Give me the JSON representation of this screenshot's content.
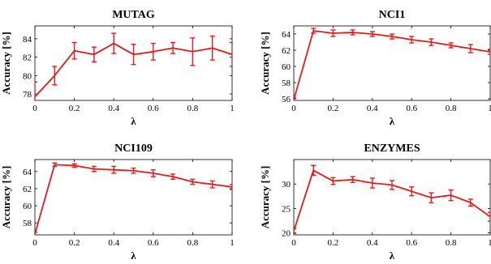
{
  "figure": {
    "accent": "#e41a1c",
    "axis_color": "#000000"
  },
  "chart_data": [
    {
      "type": "line",
      "title": "MUTAG",
      "xlabel": "λ",
      "ylabel": "Accuracy [%]",
      "xlim": [
        0,
        1
      ],
      "ylim": [
        77.3,
        85.4
      ],
      "xticks": [
        "0",
        "0.2",
        "0.4",
        "0.6",
        "0.8",
        "1"
      ],
      "yticks": [
        "78",
        "80",
        "82",
        "84"
      ],
      "grid": false,
      "series": [
        {
          "color": "#e41a1c",
          "x": [
            0,
            0.1,
            0.2,
            0.3,
            0.4,
            0.5,
            0.6,
            0.7,
            0.8,
            0.9,
            1.0
          ],
          "y": [
            77.7,
            80.0,
            82.7,
            82.3,
            83.5,
            82.3,
            82.6,
            83.0,
            82.6,
            83.0,
            82.3
          ],
          "err": [
            1.6,
            1.0,
            0.9,
            0.8,
            1.1,
            1.1,
            0.9,
            0.6,
            1.5,
            1.3,
            1.3
          ]
        }
      ]
    },
    {
      "type": "line",
      "title": "NCI1",
      "xlabel": "λ",
      "ylabel": "Accuracy [%]",
      "xlim": [
        0,
        1
      ],
      "ylim": [
        55.8,
        65.0
      ],
      "xticks": [
        "0",
        "0.2",
        "0.4",
        "0.6",
        "0.8",
        "1"
      ],
      "yticks": [
        "56",
        "58",
        "60",
        "62",
        "64"
      ],
      "grid": false,
      "series": [
        {
          "color": "#e41a1c",
          "x": [
            0,
            0.1,
            0.2,
            0.3,
            0.4,
            0.5,
            0.6,
            0.7,
            0.8,
            0.9,
            1.0
          ],
          "y": [
            55.9,
            64.4,
            64.1,
            64.2,
            64.0,
            63.7,
            63.3,
            63.0,
            62.6,
            62.2,
            61.8
          ],
          "err": [
            0.2,
            0.3,
            0.4,
            0.3,
            0.3,
            0.3,
            0.4,
            0.4,
            0.3,
            0.5,
            0.3
          ]
        }
      ]
    },
    {
      "type": "line",
      "title": "NCI109",
      "xlabel": "λ",
      "ylabel": "Accuracy [%]",
      "xlim": [
        0,
        1
      ],
      "ylim": [
        56.6,
        65.4
      ],
      "xticks": [
        "0",
        "0.2",
        "0.4",
        "0.6",
        "0.8",
        "1"
      ],
      "yticks": [
        "58",
        "60",
        "62",
        "64"
      ],
      "grid": false,
      "series": [
        {
          "color": "#e41a1c",
          "x": [
            0,
            0.1,
            0.2,
            0.3,
            0.4,
            0.5,
            0.6,
            0.7,
            0.8,
            0.9,
            1.0
          ],
          "y": [
            56.7,
            64.8,
            64.7,
            64.3,
            64.2,
            64.1,
            63.8,
            63.4,
            62.8,
            62.5,
            62.2
          ],
          "err": [
            0.2,
            0.2,
            0.2,
            0.3,
            0.4,
            0.3,
            0.4,
            0.3,
            0.3,
            0.4,
            0.3
          ]
        }
      ]
    },
    {
      "type": "line",
      "title": "ENZYMES",
      "xlabel": "λ",
      "ylabel": "Accuracy [%]",
      "xlim": [
        0,
        1
      ],
      "ylim": [
        19.6,
        35.0
      ],
      "xticks": [
        "0",
        "0.2",
        "0.4",
        "0.6",
        "0.8",
        "1"
      ],
      "yticks": [
        "20",
        "25",
        "30"
      ],
      "grid": false,
      "series": [
        {
          "color": "#e41a1c",
          "x": [
            0,
            0.1,
            0.2,
            0.3,
            0.4,
            0.5,
            0.6,
            0.7,
            0.8,
            0.9,
            1.0
          ],
          "y": [
            20.4,
            32.8,
            30.6,
            30.9,
            30.2,
            29.8,
            28.5,
            27.2,
            27.7,
            26.2,
            23.3
          ],
          "err": [
            0.5,
            1.0,
            0.7,
            0.6,
            1.0,
            0.9,
            0.9,
            1.0,
            1.1,
            0.7,
            0.9
          ]
        }
      ]
    }
  ]
}
